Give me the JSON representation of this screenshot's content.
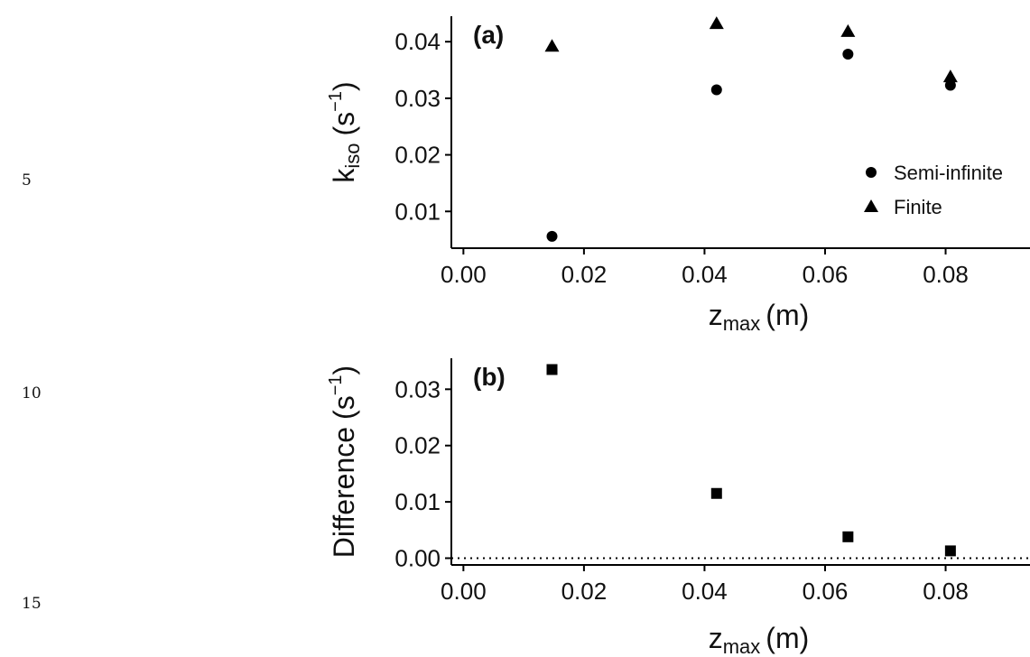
{
  "line_numbers": [
    "5",
    "10",
    "15"
  ],
  "chart_data": [
    {
      "panel_label": "(a)",
      "type": "scatter",
      "xlabel": {
        "main": "z",
        "sub": "max",
        "unit": "(m)"
      },
      "ylabel": {
        "main": "k",
        "sub": "iso",
        "unit_open": "(s",
        "sup": "−1",
        "unit_close": ")"
      },
      "xlim": [
        -0.002,
        0.094
      ],
      "ylim": [
        0.0035,
        0.0445
      ],
      "x_ticks": [
        0.0,
        0.02,
        0.04,
        0.06,
        0.08
      ],
      "x_tick_labels": [
        "0.00",
        "0.02",
        "0.04",
        "0.06",
        "0.08"
      ],
      "y_ticks": [
        0.01,
        0.02,
        0.03,
        0.04
      ],
      "y_tick_labels": [
        "0.01",
        "0.02",
        "0.03",
        "0.04"
      ],
      "grid": false,
      "legend_position": "bottom-right",
      "series": [
        {
          "name": "Semi-infinite",
          "marker": "circle",
          "x": [
            0.0147,
            0.042,
            0.0638,
            0.0808
          ],
          "y": [
            0.0056,
            0.0315,
            0.0378,
            0.0323
          ]
        },
        {
          "name": "Finite",
          "marker": "triangle",
          "x": [
            0.0147,
            0.042,
            0.0638,
            0.0808
          ],
          "y": [
            0.0392,
            0.0432,
            0.0418,
            0.0338
          ]
        }
      ]
    },
    {
      "panel_label": "(b)",
      "type": "scatter",
      "xlabel": {
        "main": "z",
        "sub": "max",
        "unit": "(m)"
      },
      "ylabel": {
        "main": "Difference",
        "unit_open": "(s",
        "sup": "−1",
        "unit_close": ")"
      },
      "xlim": [
        -0.002,
        0.094
      ],
      "ylim": [
        -0.0012,
        0.0355
      ],
      "x_ticks": [
        0.0,
        0.02,
        0.04,
        0.06,
        0.08
      ],
      "x_tick_labels": [
        "0.00",
        "0.02",
        "0.04",
        "0.06",
        "0.08"
      ],
      "y_ticks": [
        0.0,
        0.01,
        0.02,
        0.03
      ],
      "y_tick_labels": [
        "0.00",
        "0.01",
        "0.02",
        "0.03"
      ],
      "grid": false,
      "reference_line": {
        "y": 0,
        "style": "dotted"
      },
      "series": [
        {
          "marker": "square",
          "x": [
            0.0147,
            0.042,
            0.0638,
            0.0808
          ],
          "y": [
            0.0335,
            0.0115,
            0.0038,
            0.0013
          ]
        }
      ]
    }
  ]
}
